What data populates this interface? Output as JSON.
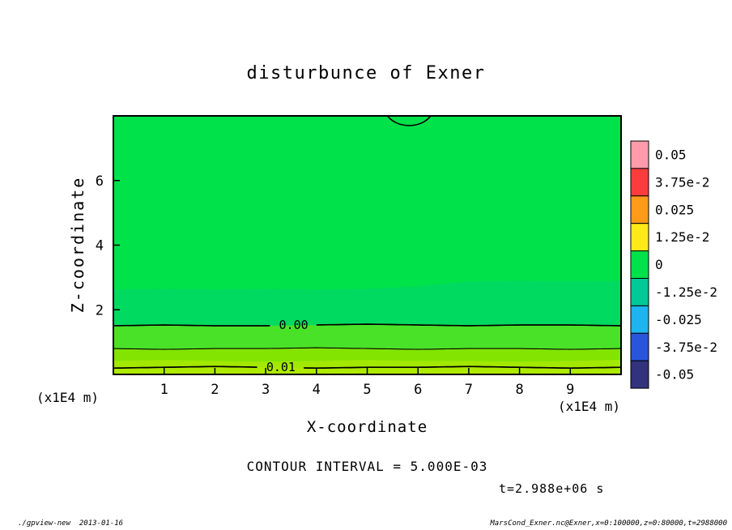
{
  "footer": {
    "left": "./gpview-new  2013-01-16",
    "right": "MarsCond_Exner.nc@Exner,x=0:100000,z=0:80000,t=2988000"
  },
  "chart_data": {
    "type": "filled-contour",
    "title": "disturbunce of Exner",
    "xlabel": "X-coordinate",
    "ylabel": "Z-coordinate",
    "x_unit": "(x1E4 m)",
    "y_unit": "(x1E4 m)",
    "xlim": [
      0,
      10
    ],
    "ylim": [
      0,
      8
    ],
    "x_ticks": [
      1,
      2,
      3,
      4,
      5,
      6,
      7,
      8,
      9
    ],
    "y_ticks": [
      2,
      4,
      6
    ],
    "grid": false,
    "legend_position": "right-colorbar",
    "contour_interval": 0.005,
    "contour_interval_label": "CONTOUR INTERVAL = 5.000E-03",
    "time_label": "t=2.988e+06 s",
    "field_bands": [
      {
        "z_top": 8.0,
        "color": "#00E24A"
      },
      {
        "z_top": 2.85,
        "color": "#00DA60"
      },
      {
        "z_top": 1.53,
        "color": "#49E228"
      },
      {
        "z_top": 0.8,
        "color": "#82E400"
      },
      {
        "z_top": 0.42,
        "color": "#A2E800"
      },
      {
        "z_top": 0.22,
        "color": "#AEEA00"
      }
    ],
    "contour_lines": [
      {
        "z": 1.53,
        "value": 0.0,
        "label": "0.00",
        "label_x": 3.55
      },
      {
        "z": 0.8,
        "value": 0.005,
        "label": null,
        "label_x": null
      },
      {
        "z": 0.22,
        "value": 0.01,
        "label": "0.01",
        "label_x": 3.3
      }
    ],
    "top_closed_contour": {
      "x_from": 5.4,
      "x_to": 6.25,
      "z_min": 7.6,
      "value": 0.0
    },
    "colorbar": {
      "entries": [
        {
          "label": "0.05",
          "color": "#FF9BAA"
        },
        {
          "label": "3.75e-2",
          "color": "#FA3C3C"
        },
        {
          "label": "0.025",
          "color": "#FF9B19"
        },
        {
          "label": "1.25e-2",
          "color": "#FFE919"
        },
        {
          "label": "0",
          "color": "#00E24A"
        },
        {
          "label": "-1.25e-2",
          "color": "#00C896"
        },
        {
          "label": "-0.025",
          "color": "#1EB4F0"
        },
        {
          "label": "-3.75e-2",
          "color": "#2855DC"
        },
        {
          "label": "-0.05",
          "color": "#32327D"
        }
      ]
    }
  }
}
